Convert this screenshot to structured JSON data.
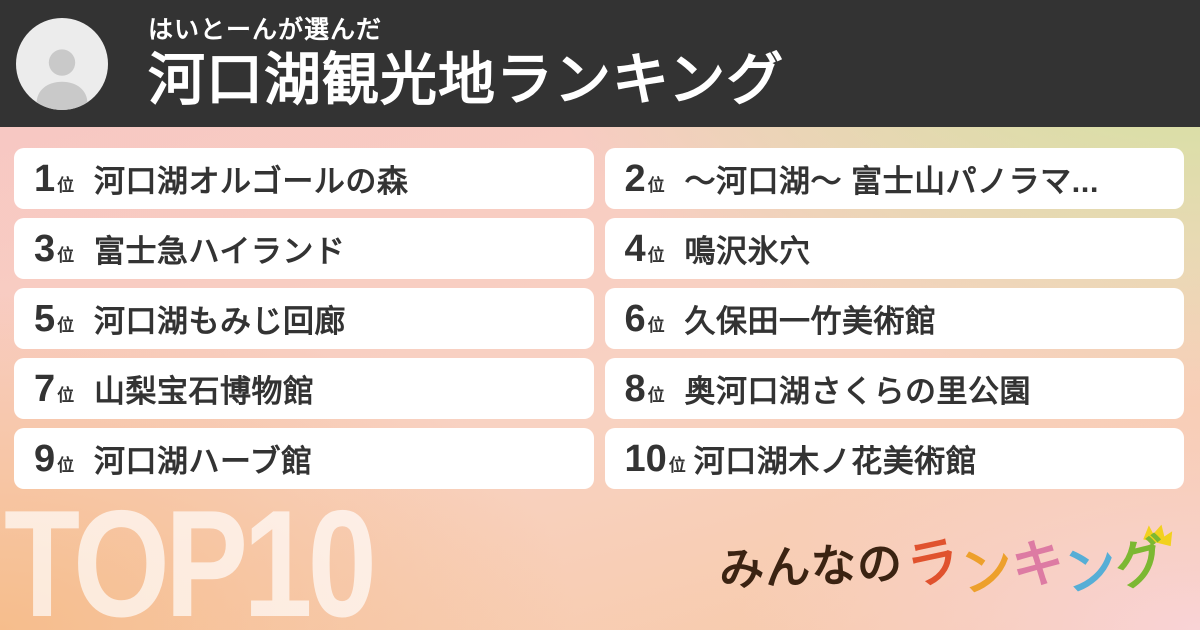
{
  "header": {
    "subtitle": "はいとーんが選んだ",
    "title": "河口湖観光地ランキング"
  },
  "ranking": {
    "items": [
      {
        "rank": "1",
        "suffix": "位",
        "name": "河口湖オルゴールの森"
      },
      {
        "rank": "2",
        "suffix": "位",
        "name": "〜河口湖〜 富士山パノラマ..."
      },
      {
        "rank": "3",
        "suffix": "位",
        "name": "富士急ハイランド"
      },
      {
        "rank": "4",
        "suffix": "位",
        "name": "鳴沢氷穴"
      },
      {
        "rank": "5",
        "suffix": "位",
        "name": "河口湖もみじ回廊"
      },
      {
        "rank": "6",
        "suffix": "位",
        "name": "久保田一竹美術館"
      },
      {
        "rank": "7",
        "suffix": "位",
        "name": "山梨宝石博物館"
      },
      {
        "rank": "8",
        "suffix": "位",
        "name": "奥河口湖さくらの里公園"
      },
      {
        "rank": "9",
        "suffix": "位",
        "name": "河口湖ハーブ館"
      },
      {
        "rank": "10",
        "suffix": "位",
        "name": "河口湖木ノ花美術館"
      }
    ]
  },
  "footer": {
    "top_label": "TOP10",
    "logo": {
      "prefix": "みんなの",
      "colored": [
        {
          "char": "ラ",
          "color": "#e0522e"
        },
        {
          "char": "ン",
          "color": "#eda02c"
        },
        {
          "char": "キ",
          "color": "#dd7ba3"
        },
        {
          "char": "ン",
          "color": "#56aed6"
        },
        {
          "char": "グ",
          "color": "#7cb832"
        }
      ]
    }
  },
  "icons": {
    "avatar": "user-silhouette-icon",
    "crown": "crown-icon"
  },
  "colors": {
    "header_bg": "#333333",
    "card_bg": "#ffffff",
    "card_text": "#333333",
    "bg_top_left": "#f7c5c3",
    "bg_top_right": "#cde69b",
    "bg_bottom_left": "#f6c295",
    "bg_bottom_right": "#f9d6d9",
    "top_label_color": "rgba(255,255,255,0.68)",
    "logo_prefix_color": "#3b2312",
    "crown_color": "#f2d11e"
  }
}
